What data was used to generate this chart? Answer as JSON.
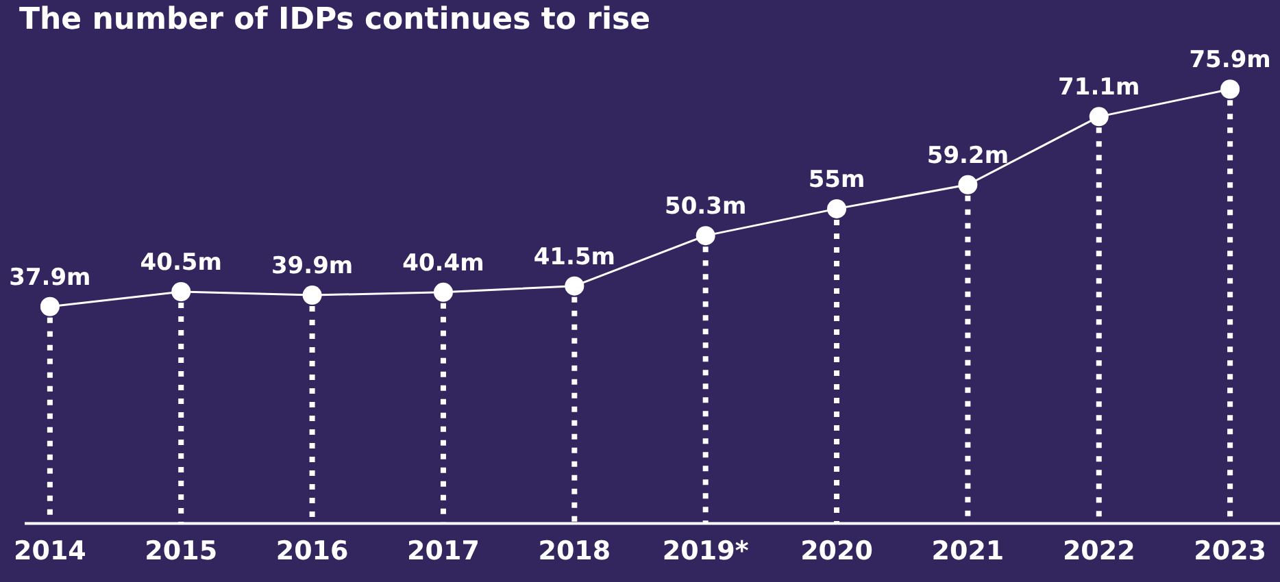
{
  "chart_data": {
    "type": "line",
    "title": "The number of IDPs continues to rise",
    "categories": [
      "2014",
      "2015",
      "2016",
      "2017",
      "2018",
      "2019*",
      "2020",
      "2021",
      "2022",
      "2023"
    ],
    "series": [
      {
        "color": "#ffffff",
        "values": [
          37.9,
          40.5,
          39.9,
          40.4,
          41.5,
          50.3,
          55,
          59.2,
          71.1,
          75.9
        ],
        "value_labels": [
          "37.9m",
          "40.5m",
          "39.9m",
          "40.4m",
          "41.5m",
          "50.3m",
          "55m",
          "59.2m",
          "71.1m",
          "75.9m"
        ]
      }
    ],
    "data_labels": true,
    "marker": "circle",
    "line_style": "solid",
    "grid": "x",
    "legend": false
  }
}
